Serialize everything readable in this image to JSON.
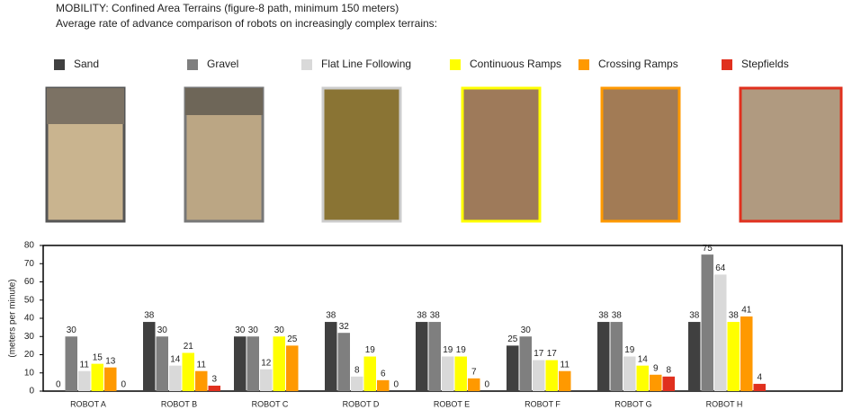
{
  "chart_data": {
    "type": "bar",
    "title": "MOBILITY: Confined Area Terrains (figure-8 path, minimum 150 meters)",
    "subtitle": "Average rate of advance comparison of robots on increasingly complex terrains:",
    "y_label": "(meters per minute)",
    "categories": [
      "ROBOT A",
      "ROBOT B",
      "ROBOT C",
      "ROBOT D",
      "ROBOT E",
      "ROBOT F",
      "ROBOT G",
      "ROBOT H"
    ],
    "series": [
      {
        "name": "Sand",
        "color": "#404040",
        "values": [
          0,
          38,
          30,
          38,
          38,
          25,
          38,
          38
        ]
      },
      {
        "name": "Gravel",
        "color": "#7f7f7f",
        "values": [
          30,
          30,
          30,
          32,
          38,
          30,
          38,
          75
        ]
      },
      {
        "name": "Flat Line Following",
        "color": "#d9d9d9",
        "values": [
          11,
          14,
          12,
          8,
          19,
          17,
          19,
          64
        ]
      },
      {
        "name": "Continuous Ramps",
        "color": "#ffff00",
        "values": [
          15,
          21,
          30,
          19,
          19,
          17,
          14,
          38
        ]
      },
      {
        "name": "Crossing Ramps",
        "color": "#ff9900",
        "values": [
          13,
          11,
          25,
          6,
          7,
          11,
          9,
          41
        ]
      },
      {
        "name": "Stepfields",
        "color": "#e0301e",
        "values": [
          0,
          3,
          null,
          0,
          0,
          null,
          8,
          4
        ]
      }
    ],
    "ylim": [
      0,
      80
    ],
    "yticks": [
      0,
      10,
      20,
      30,
      40,
      50,
      60,
      70,
      80
    ],
    "grid": false
  }
}
